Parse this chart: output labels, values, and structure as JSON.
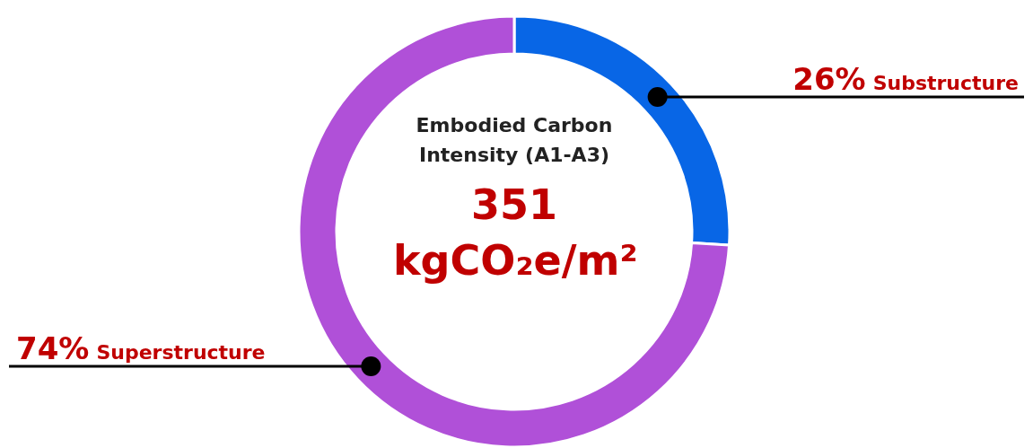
{
  "chart_data": {
    "type": "donut",
    "title": "Embodied Carbon Intensity (A1-A3)",
    "subtitle": "351 kgCO₂e/m²",
    "categories": [
      "Substructure",
      "Superstructure"
    ],
    "values": [
      26,
      74
    ],
    "colors": [
      "#0866e6",
      "#b050d8"
    ],
    "value_labels": [
      "26%",
      "74%"
    ]
  }
}
